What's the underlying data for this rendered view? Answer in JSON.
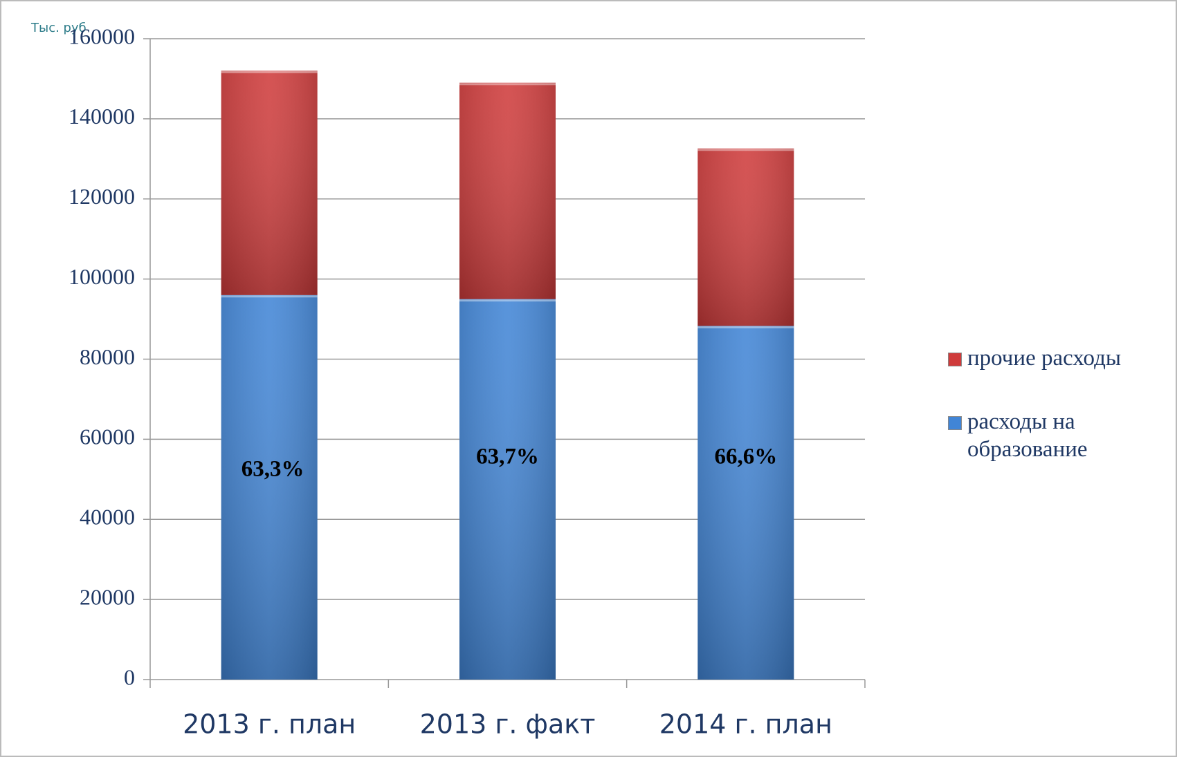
{
  "chart_data": {
    "type": "stacked_bar",
    "y_unit_label": "Тыс. руб",
    "categories": [
      "2013 г. план",
      "2013 г. факт",
      "2014 г. план"
    ],
    "series": [
      {
        "name": "расходы на образование",
        "color": "#4185d6",
        "values": [
          96000,
          95000,
          88300
        ]
      },
      {
        "name": "прочие расходы",
        "color": "#cf3b3b",
        "values": [
          56000,
          54000,
          44300
        ]
      }
    ],
    "annotations": [
      "63,3%",
      "63,7%",
      "66,6%"
    ],
    "ylim": [
      0,
      160000
    ],
    "yticks": [
      0,
      20000,
      40000,
      60000,
      80000,
      100000,
      120000,
      140000,
      160000
    ],
    "grid": true,
    "legend": "right"
  }
}
